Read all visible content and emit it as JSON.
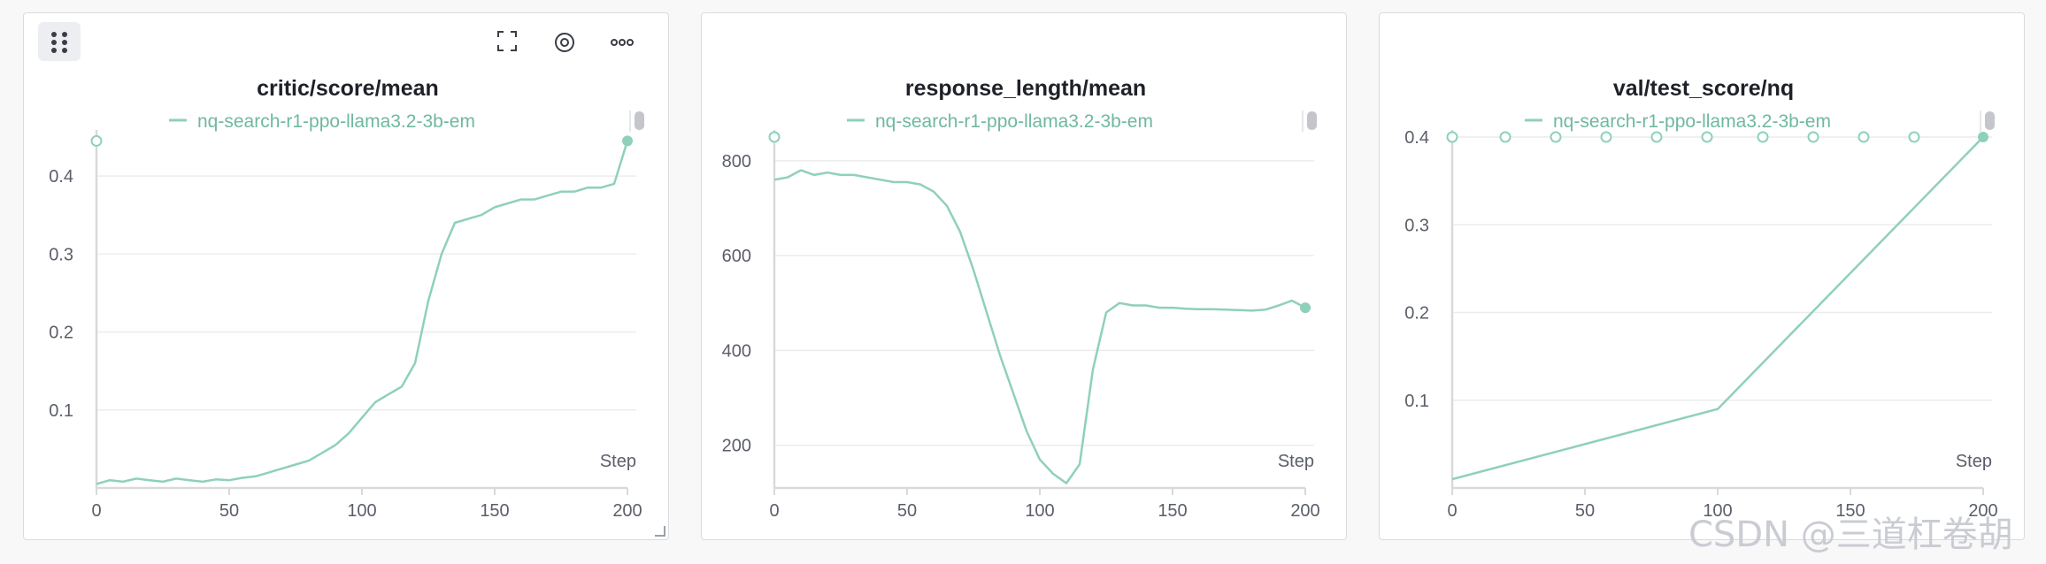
{
  "toolbar": {
    "drag_icon": "drag-grid-icon",
    "fullscreen_icon": "fullscreen-icon",
    "settings_icon": "gear-icon",
    "more_icon": "more-dots-icon"
  },
  "colors": {
    "series": "#8fd0bb",
    "legend_text": "#6fb8a1",
    "grid": "#ececef",
    "axis": "#d9d9dc"
  },
  "watermark": "CSDN @三道杠卷胡",
  "chart_data": [
    {
      "type": "line",
      "title": "critic/score/mean",
      "xlabel": "Step",
      "ylabel": "",
      "xlim": [
        0,
        200
      ],
      "ylim": [
        0,
        0.45
      ],
      "xticks": [
        0,
        50,
        100,
        150,
        200
      ],
      "yticks": [
        0.1,
        0.2,
        0.3,
        0.4
      ],
      "ytick_labels": [
        "0.1",
        "0.2",
        "0.3",
        "0.4"
      ],
      "legend": "top-center",
      "grid": true,
      "series": [
        {
          "name": "nq-search-r1-ppo-llama3.2-3b-em",
          "x": [
            0,
            5,
            10,
            15,
            20,
            25,
            30,
            35,
            40,
            45,
            50,
            55,
            60,
            65,
            70,
            75,
            80,
            85,
            90,
            95,
            100,
            105,
            110,
            115,
            120,
            125,
            130,
            135,
            140,
            145,
            150,
            155,
            160,
            165,
            170,
            175,
            180,
            185,
            190,
            195,
            200
          ],
          "y": [
            0.005,
            0.01,
            0.008,
            0.012,
            0.01,
            0.008,
            0.012,
            0.01,
            0.008,
            0.011,
            0.01,
            0.013,
            0.015,
            0.02,
            0.025,
            0.03,
            0.035,
            0.045,
            0.055,
            0.07,
            0.09,
            0.11,
            0.12,
            0.13,
            0.16,
            0.24,
            0.3,
            0.34,
            0.345,
            0.35,
            0.36,
            0.365,
            0.37,
            0.37,
            0.375,
            0.38,
            0.38,
            0.385,
            0.385,
            0.39,
            0.445
          ]
        }
      ],
      "markers": [
        {
          "x": 0,
          "y": 0.445,
          "style": "hollow"
        },
        {
          "x": 200,
          "y": 0.445,
          "style": "filled"
        }
      ]
    },
    {
      "type": "line",
      "title": "response_length/mean",
      "xlabel": "Step",
      "ylabel": "",
      "xlim": [
        0,
        200
      ],
      "ylim": [
        110,
        850
      ],
      "xticks": [
        0,
        50,
        100,
        150,
        200
      ],
      "yticks": [
        200,
        400,
        600,
        800
      ],
      "ytick_labels": [
        "200",
        "400",
        "600",
        "800"
      ],
      "legend": "top-center",
      "grid": true,
      "series": [
        {
          "name": "nq-search-r1-ppo-llama3.2-3b-em",
          "x": [
            0,
            5,
            10,
            15,
            20,
            25,
            30,
            35,
            40,
            45,
            50,
            55,
            60,
            65,
            70,
            75,
            80,
            85,
            90,
            95,
            100,
            105,
            110,
            115,
            120,
            125,
            130,
            135,
            140,
            145,
            150,
            155,
            160,
            165,
            170,
            175,
            180,
            185,
            190,
            195,
            200
          ],
          "y": [
            760,
            765,
            780,
            770,
            775,
            770,
            770,
            765,
            760,
            755,
            755,
            750,
            735,
            705,
            650,
            570,
            480,
            390,
            310,
            230,
            170,
            140,
            120,
            160,
            360,
            480,
            500,
            495,
            495,
            490,
            490,
            488,
            487,
            487,
            486,
            485,
            484,
            486,
            495,
            505,
            490
          ]
        }
      ],
      "markers": [
        {
          "x": 0,
          "y": 850,
          "style": "hollow"
        },
        {
          "x": 200,
          "y": 490,
          "style": "filled"
        }
      ]
    },
    {
      "type": "line",
      "title": "val/test_score/nq",
      "xlabel": "Step",
      "ylabel": "",
      "xlim": [
        0,
        200
      ],
      "ylim": [
        0,
        0.4
      ],
      "xticks": [
        0,
        50,
        100,
        150,
        200
      ],
      "yticks": [
        0.1,
        0.2,
        0.3,
        0.4
      ],
      "ytick_labels": [
        "0.1",
        "0.2",
        "0.3",
        "0.4"
      ],
      "legend": "top-center",
      "grid": true,
      "series": [
        {
          "name": "nq-search-r1-ppo-llama3.2-3b-em",
          "x": [
            0,
            100,
            200
          ],
          "y": [
            0.01,
            0.09,
            0.4
          ]
        }
      ],
      "top_markers_x": [
        0,
        20,
        39,
        58,
        77,
        96,
        117,
        136,
        155,
        174
      ],
      "markers": [
        {
          "x": 200,
          "y": 0.4,
          "style": "filled"
        }
      ]
    }
  ]
}
